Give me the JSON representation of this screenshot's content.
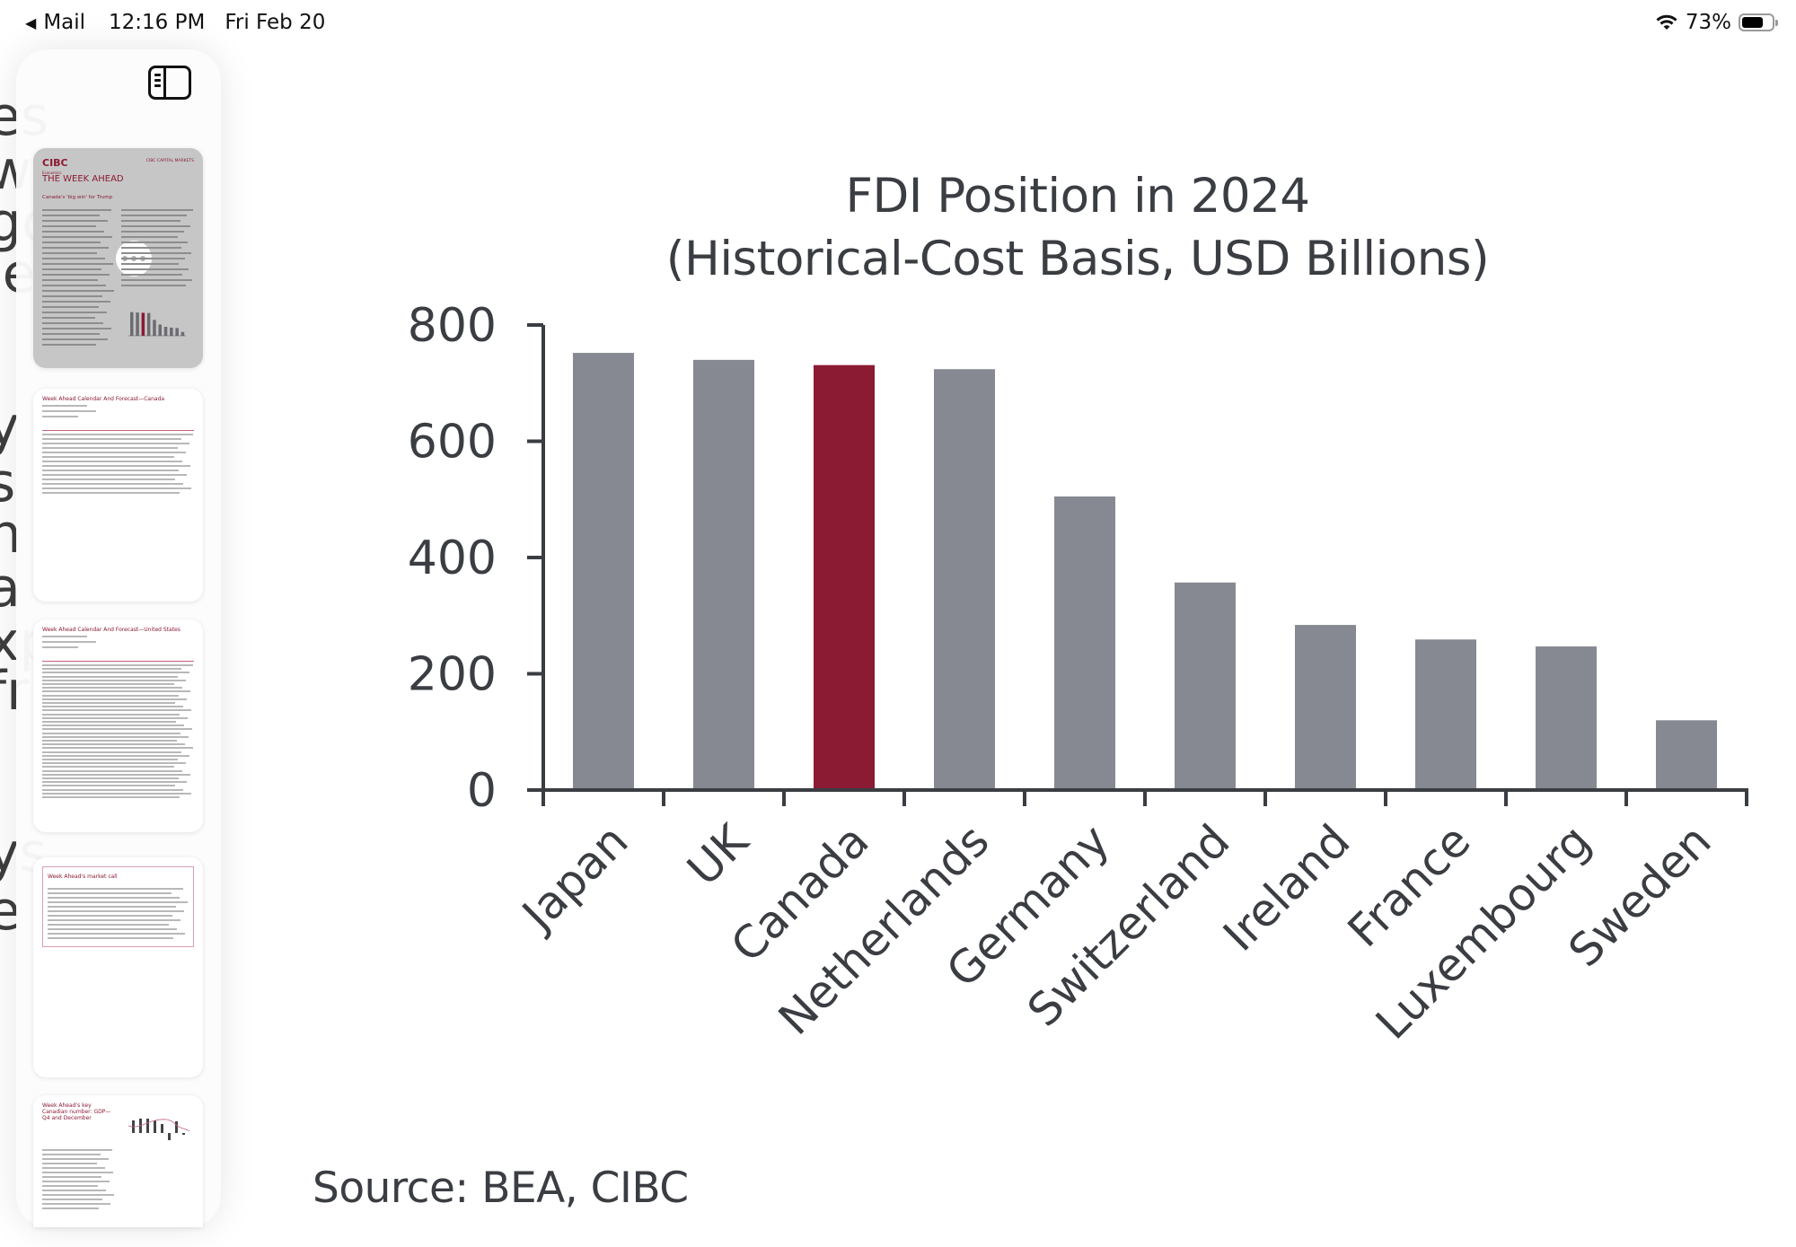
{
  "status_bar": {
    "back_app": "Mail",
    "time": "12:16 PM",
    "date": "Fri Feb 20",
    "battery_percent": "73%",
    "battery_level": 0.73
  },
  "sidebar": {
    "toggle_label": "Toggle sidebar",
    "pages": [
      {
        "page": 1,
        "selected": true,
        "logo": "CIBC",
        "publisher": "CIBC CAPITAL MARKETS",
        "kicker": "Economics",
        "title": "THE WEEK AHEAD",
        "headline": "Canada's 'big win' for Trump"
      },
      {
        "page": 2,
        "selected": false,
        "title": "Week Ahead Calendar And Forecast—Canada"
      },
      {
        "page": 3,
        "selected": false,
        "title": "Week Ahead Calendar And Forecast—United States"
      },
      {
        "page": 4,
        "selected": false,
        "title": "Week Ahead's market call"
      },
      {
        "page": 5,
        "selected": false,
        "title": "Week Ahead's key Canadian number: GDP— Q4 and December"
      }
    ]
  },
  "background_text_fragments": [
    "es",
    "w",
    "go",
    "ie",
    "y",
    "s",
    "n",
    "a",
    "xp",
    "fr",
    "ys",
    "e"
  ],
  "colors": {
    "bar_default": "#868991",
    "bar_highlight": "#8B1A33",
    "axis": "#3a3d42",
    "text": "#3a3d42"
  },
  "chart_data": {
    "type": "bar",
    "title": "FDI Position in 2024",
    "subtitle": "(Historical-Cost Basis, USD Billions)",
    "xlabel": "",
    "ylabel": "",
    "categories": [
      "Japan",
      "UK",
      "Canada",
      "Netherlands",
      "Germany",
      "Switzerland",
      "Ireland",
      "France",
      "Luxembourg",
      "Sweden"
    ],
    "values": [
      752,
      740,
      731,
      724,
      505,
      357,
      284,
      259,
      247,
      120
    ],
    "highlight": "Canada",
    "ylim": [
      0,
      800
    ],
    "yticks": [
      0,
      200,
      400,
      600,
      800
    ],
    "grid": false,
    "legend": "none",
    "x_tick_rotation_deg": -45,
    "source": "Source: BEA, CIBC"
  }
}
